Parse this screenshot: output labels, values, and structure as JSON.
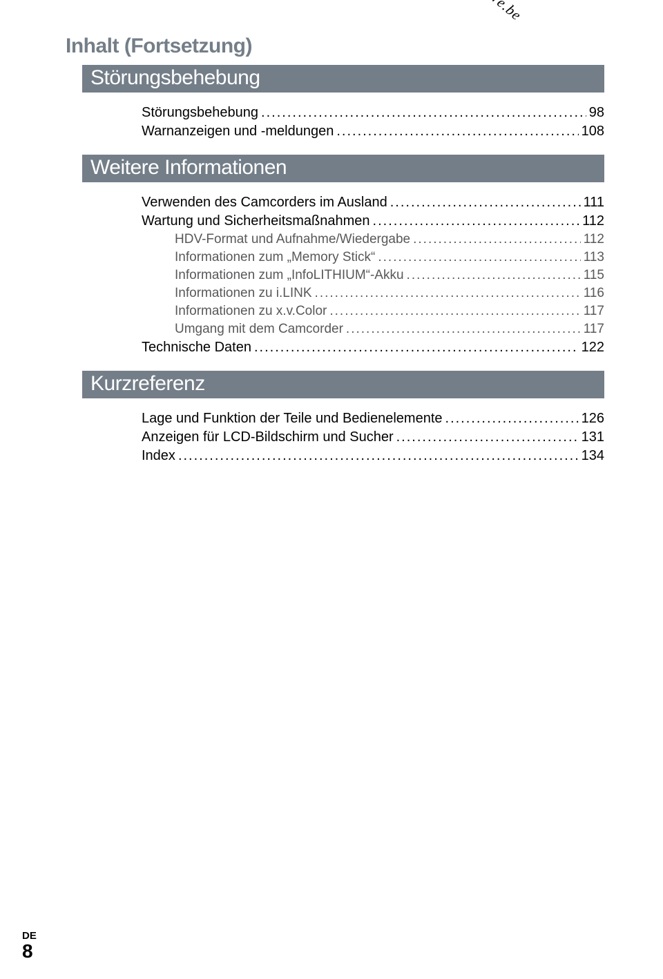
{
  "watermark": "Downloaded from www.vandenborre.be",
  "continuation_title": "Inhalt (Fortsetzung)",
  "sections": [
    {
      "heading": "Störungsbehebung",
      "items": [
        {
          "label": "Störungsbehebung",
          "page": "98",
          "sub": false
        },
        {
          "label": "Warnanzeigen und -meldungen",
          "page": "108",
          "sub": false
        }
      ]
    },
    {
      "heading": "Weitere Informationen",
      "items": [
        {
          "label": "Verwenden des Camcorders im Ausland",
          "page": "111",
          "sub": false
        },
        {
          "label": "Wartung und Sicherheitsmaßnahmen",
          "page": "112",
          "sub": false
        },
        {
          "label": "HDV-Format und Aufnahme/Wiedergabe",
          "page": "112",
          "sub": true
        },
        {
          "label": "Informationen zum „Memory Stick“",
          "page": "113",
          "sub": true
        },
        {
          "label": "Informationen zum „InfoLITHIUM“-Akku",
          "page": "115",
          "sub": true
        },
        {
          "label": "Informationen zu i.LINK",
          "page": "116",
          "sub": true
        },
        {
          "label": "Informationen zu x.v.Color",
          "page": "117",
          "sub": true
        },
        {
          "label": "Umgang mit dem Camcorder",
          "page": "117",
          "sub": true
        },
        {
          "label": "Technische Daten",
          "page": "122",
          "sub": false
        }
      ]
    },
    {
      "heading": "Kurzreferenz",
      "items": [
        {
          "label": "Lage und Funktion der Teile und Bedienelemente",
          "page": "126",
          "sub": false
        },
        {
          "label": "Anzeigen für LCD-Bildschirm und Sucher ",
          "page": "131",
          "sub": false
        },
        {
          "label": "Index",
          "page": "134",
          "sub": false
        }
      ]
    }
  ],
  "footer": {
    "lang": "DE",
    "page": "8"
  },
  "colors": {
    "section_bar_bg": "#747e88",
    "section_bar_text": "#ffffff",
    "title_text": "#747e88",
    "sub_item_text": "#58585a",
    "background": "#ffffff"
  }
}
